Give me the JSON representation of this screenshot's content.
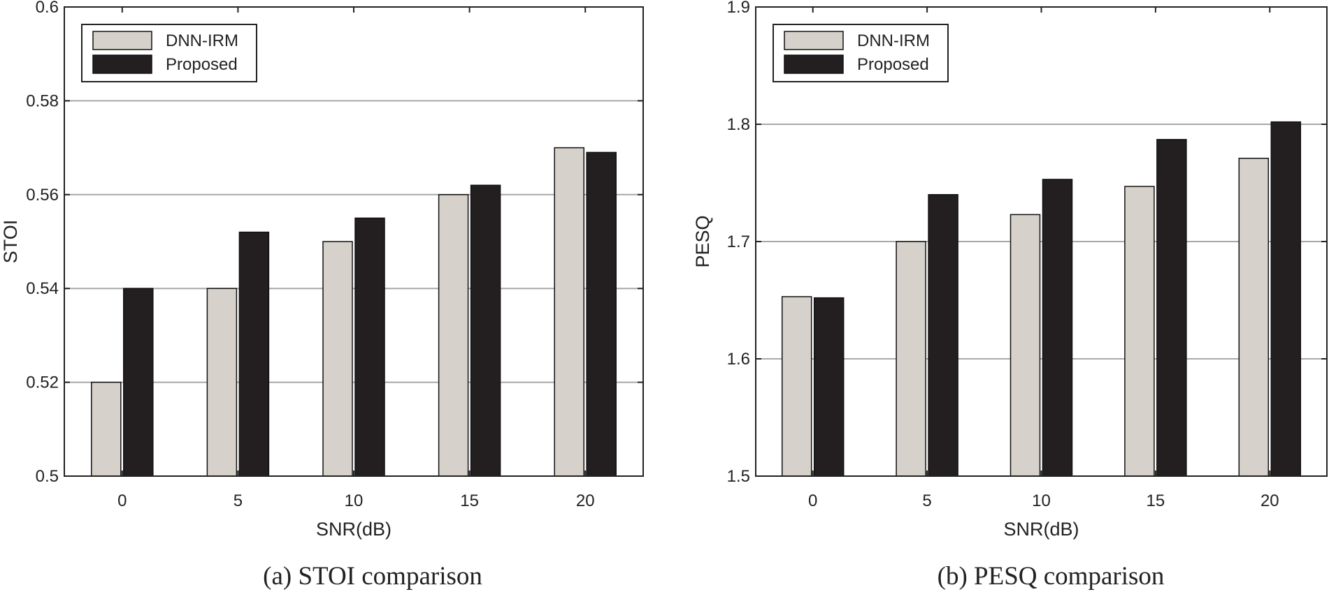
{
  "colors": {
    "dnn_irm": "#d6d2cb",
    "proposed": "#231f20",
    "grid": "#a8a8a8",
    "axis": "#222222"
  },
  "chart_data": [
    {
      "type": "bar",
      "caption": "(a) STOI comparison",
      "xlabel": "SNR(dB)",
      "ylabel": "STOI",
      "categories": [
        "0",
        "5",
        "10",
        "15",
        "20"
      ],
      "ylim": [
        0.5,
        0.6
      ],
      "yticks": [
        "0.5",
        "0.52",
        "0.54",
        "0.56",
        "0.58",
        "0.6"
      ],
      "grid": true,
      "legend": "top-left",
      "series": [
        {
          "name": "DNN-IRM",
          "values": [
            0.52,
            0.54,
            0.55,
            0.56,
            0.57
          ]
        },
        {
          "name": "Proposed",
          "values": [
            0.54,
            0.552,
            0.555,
            0.562,
            0.569
          ]
        }
      ]
    },
    {
      "type": "bar",
      "caption": "(b) PESQ comparison",
      "xlabel": "SNR(dB)",
      "ylabel": "PESQ",
      "categories": [
        "0",
        "5",
        "10",
        "15",
        "20"
      ],
      "ylim": [
        1.5,
        1.9
      ],
      "yticks": [
        "1.5",
        "1.6",
        "1.7",
        "1.8",
        "1.9"
      ],
      "grid": true,
      "legend": "top-left",
      "series": [
        {
          "name": "DNN-IRM",
          "values": [
            1.653,
            1.7,
            1.723,
            1.747,
            1.771
          ]
        },
        {
          "name": "Proposed",
          "values": [
            1.652,
            1.74,
            1.753,
            1.787,
            1.802
          ]
        }
      ]
    }
  ]
}
